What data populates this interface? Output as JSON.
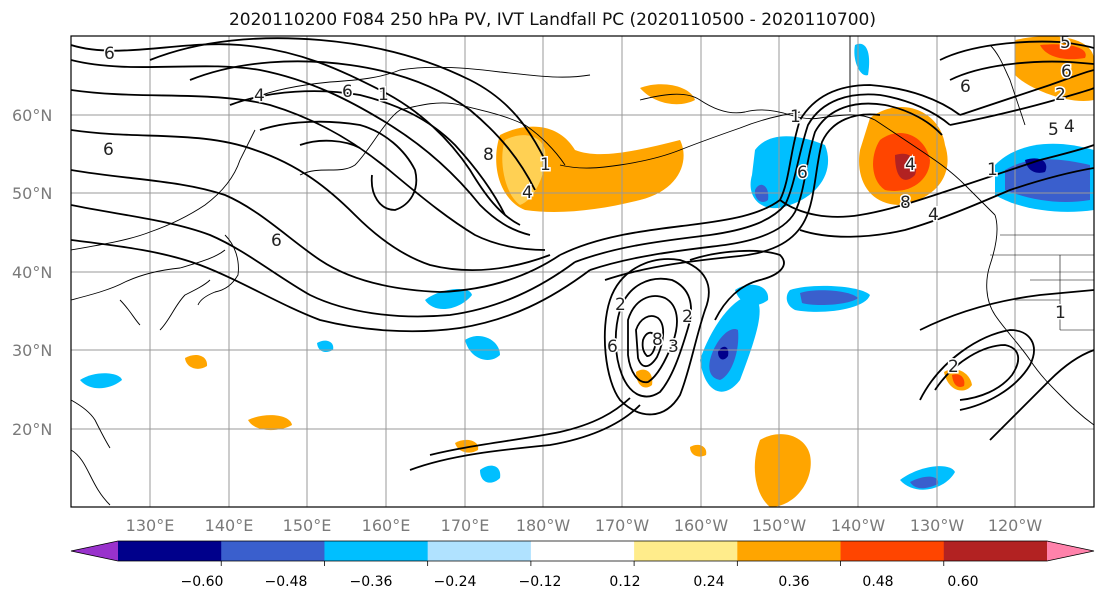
{
  "title": "2020110200 F084 250 hPa PV, IVT Landfall PC (2020110500 - 2020110700)",
  "lat_labels": [
    "60°N",
    "50°N",
    "40°N",
    "30°N",
    "20°N"
  ],
  "lon_labels": [
    "130°E",
    "140°E",
    "150°E",
    "160°E",
    "170°E",
    "180°W",
    "170°W",
    "160°W",
    "150°W",
    "140°W",
    "130°W",
    "120°W"
  ],
  "colorbar": {
    "tick_labels": [
      "−0.60",
      "−0.48",
      "−0.36",
      "−0.24",
      "−0.12",
      "0.12",
      "0.24",
      "0.36",
      "0.48",
      "0.60"
    ],
    "colors": [
      "#9932cc",
      "#00008b",
      "#3a5fcd",
      "#00bfff",
      "#b0e2ff",
      "#ffffff",
      "#ffec8b",
      "#ffa500",
      "#ff4500",
      "#b22222",
      "#ff82ab"
    ]
  },
  "contour_labels": [
    "6",
    "4",
    "6",
    "1",
    "8",
    "6",
    "1",
    "4",
    "6",
    "1",
    "6",
    "5",
    "4",
    "5",
    "2",
    "8",
    "4",
    "1",
    "4",
    "6",
    "2",
    "2",
    "3",
    "8",
    "6",
    "1",
    "2",
    "6"
  ]
}
